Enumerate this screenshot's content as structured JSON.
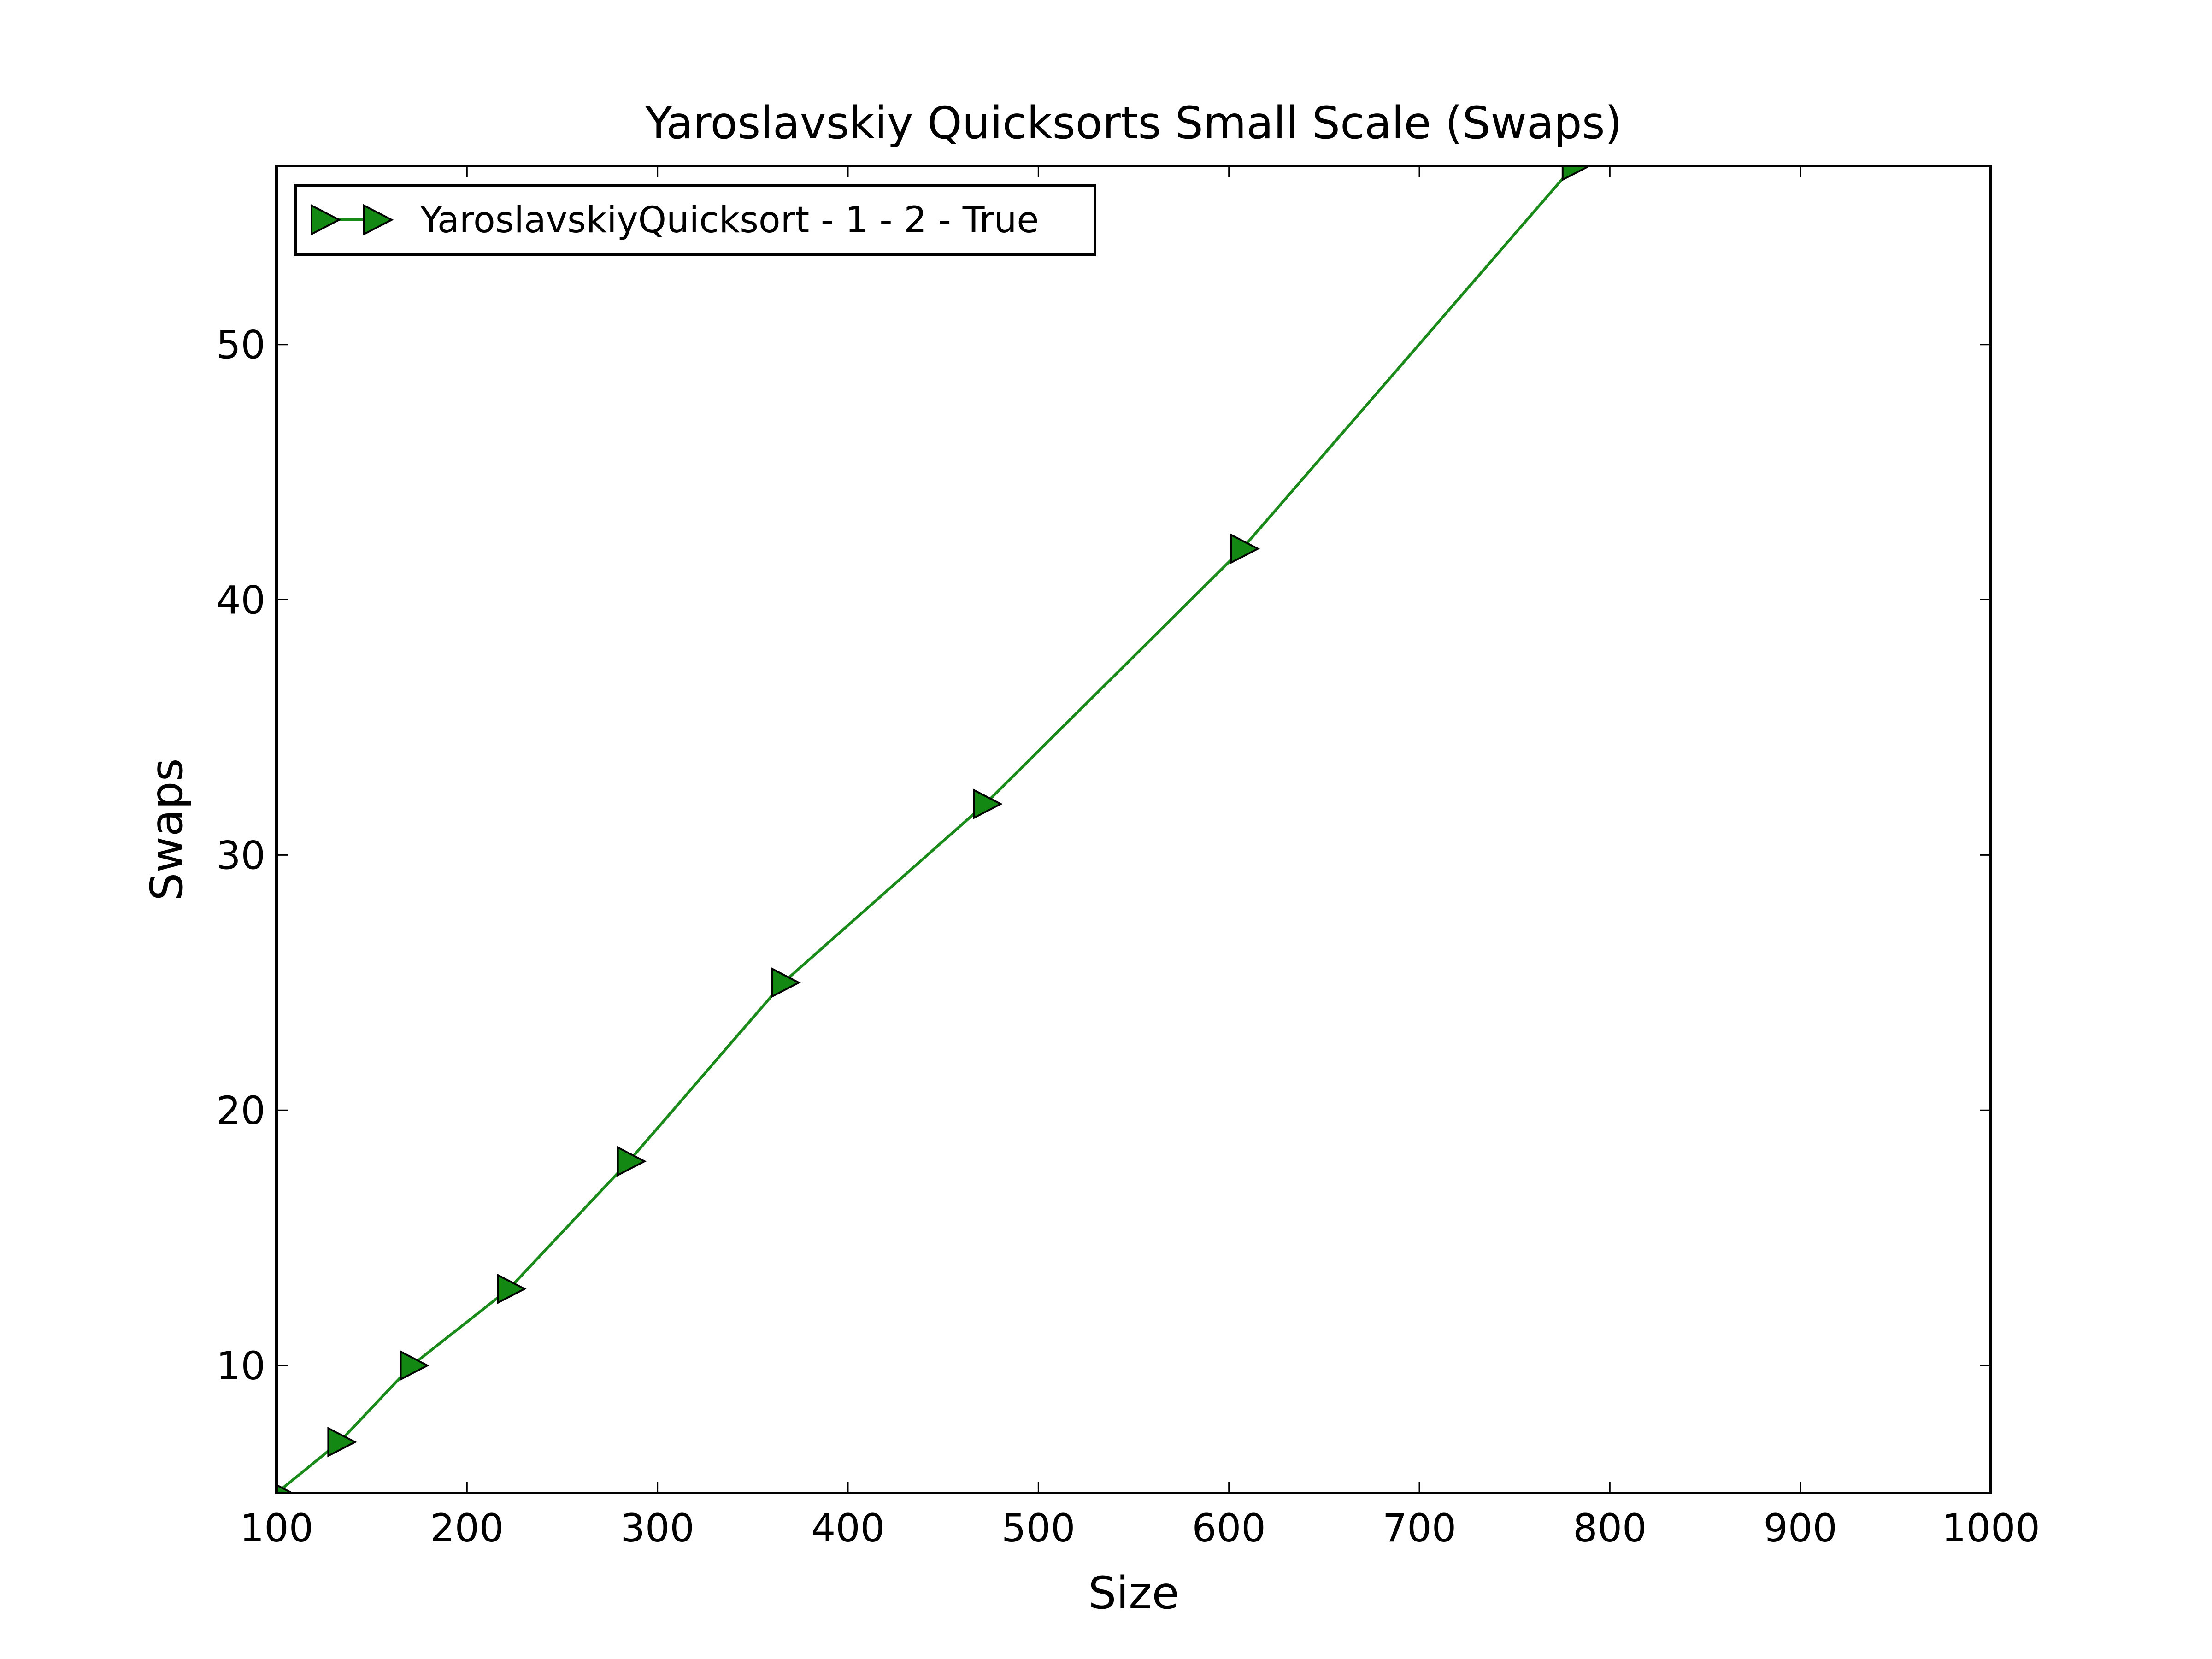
{
  "chart_data": {
    "type": "line",
    "title": "Yaroslavskiy Quicksorts Small Scale (Swaps)",
    "xlabel": "Size",
    "ylabel": "Swaps",
    "xlim": [
      100,
      1000
    ],
    "ylim": [
      5,
      57
    ],
    "xticks": [
      100,
      200,
      300,
      400,
      500,
      600,
      700,
      800,
      900,
      1000
    ],
    "yticks": [
      10,
      20,
      30,
      40,
      50
    ],
    "grid": false,
    "legend_position": "top-left",
    "series": [
      {
        "name": "YaroslavskiyQuicksort - 1 - 2 - True",
        "color": "#1a8a1a",
        "marker_color": "#138913",
        "marker": "triangle-right",
        "x": [
          100,
          133,
          171,
          222,
          285,
          366,
          472,
          607,
          781
        ],
        "y": [
          5,
          7,
          10,
          13,
          18,
          25,
          32,
          42,
          57
        ]
      }
    ]
  }
}
